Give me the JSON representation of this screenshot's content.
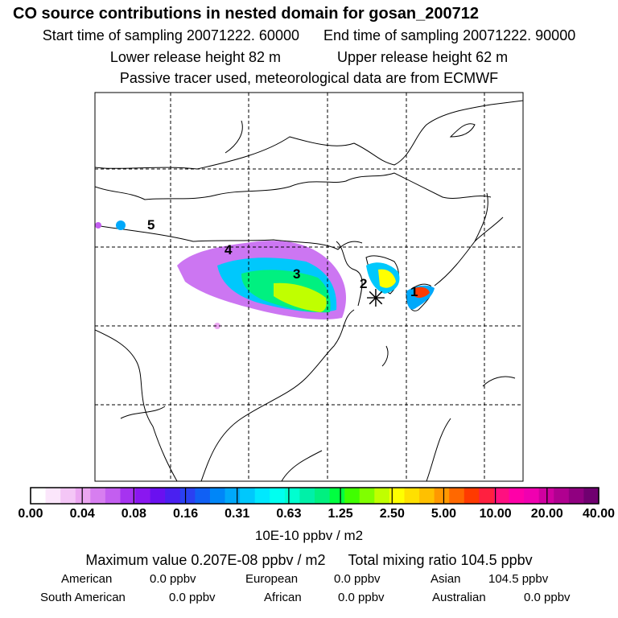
{
  "header": {
    "title": "CO  source contributions in nested domain for gosan_200712",
    "start_time": "Start time of sampling 20071222. 60000",
    "end_time": "End time of sampling 20071222. 90000",
    "lower_height": "Lower release height   82 m",
    "upper_height": "Upper release height   62 m",
    "tracer_note": "Passive tracer used, meteorological data are from ECMWF"
  },
  "map": {
    "markers": [
      "1",
      "2",
      "3",
      "4",
      "5"
    ],
    "receptor_symbol": "✳"
  },
  "colorbar": {
    "tick_labels": [
      "0.00",
      "0.04",
      "0.08",
      "0.16",
      "0.31",
      "0.63",
      "1.25",
      "2.50",
      "5.00",
      "10.00",
      "20.00",
      "40.00"
    ],
    "colors": [
      "#ffffff",
      "#fbe6fb",
      "#f4c6f6",
      "#eba6f1",
      "#d77ef0",
      "#c35ef0",
      "#a633f0",
      "#8a17f0",
      "#6a10f0",
      "#4a20f0",
      "#2a40f2",
      "#1060f4",
      "#0086f8",
      "#00a8fa",
      "#00c8fc",
      "#00e8fe",
      "#00fff0",
      "#00ffd0",
      "#00f0a8",
      "#00f080",
      "#00ff40",
      "#40ff00",
      "#80ff00",
      "#c0ff00",
      "#ffff00",
      "#ffe000",
      "#ffc000",
      "#ff9800",
      "#ff6800",
      "#ff3a00",
      "#ff2040",
      "#ff1080",
      "#ff00a8",
      "#f000b0",
      "#d000a0",
      "#b00090",
      "#900080",
      "#700070"
    ],
    "unit": "10E-10 ppbv / m2"
  },
  "stats": {
    "max_value": "Maximum value  0.207E-08 ppbv / m2",
    "total_mixing": "Total mixing ratio      104.5 ppbv",
    "regions": [
      {
        "name": "American",
        "value": "0.0 ppbv"
      },
      {
        "name": "European",
        "value": "0.0 ppbv"
      },
      {
        "name": "Asian",
        "value": "104.5 ppbv"
      },
      {
        "name": "South American",
        "value": "0.0 ppbv"
      },
      {
        "name": "African",
        "value": "0.0 ppbv"
      },
      {
        "name": "Australian",
        "value": "0.0 ppbv"
      }
    ]
  }
}
